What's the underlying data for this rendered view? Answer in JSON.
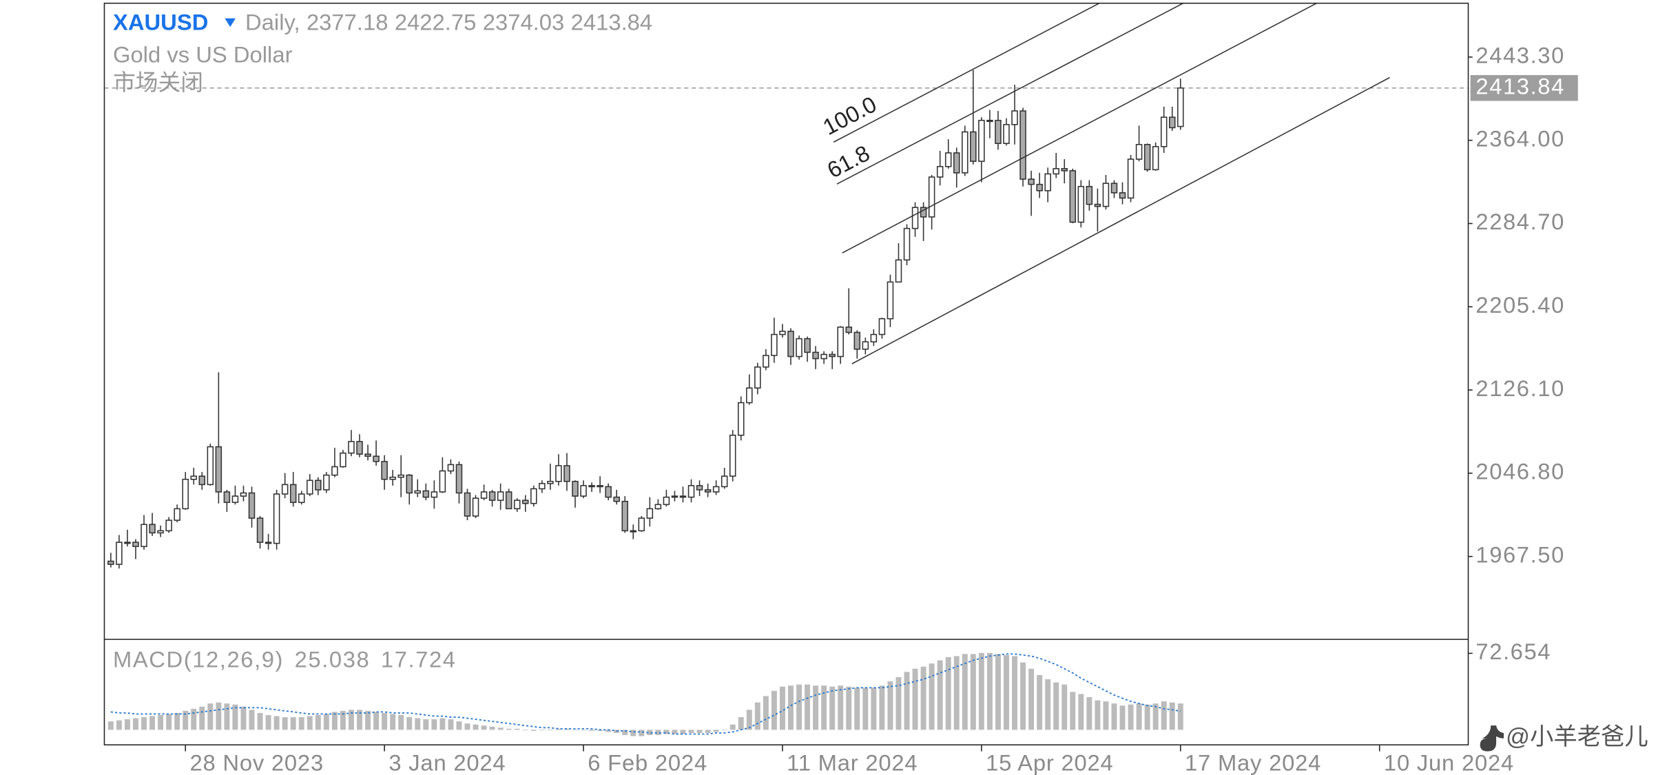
{
  "chart_data": {
    "type": "candlestick",
    "symbol": "XAUUSD",
    "timeframe": "Daily,",
    "description": "Gold vs US Dollar",
    "status": "市场关闭",
    "channel_labels": [
      "100.0",
      "61.8"
    ],
    "watermark": "@小羊老爸儿",
    "up_color": "#ffffff",
    "down_color": "#aaaaaa",
    "outline_color": "#333333",
    "xlim": [
      -0.78,
      163.7
    ],
    "ylim": [
      1888.5,
      2494.6
    ],
    "yticks": [
      {
        "value": 2443.3,
        "label": "2443.30"
      },
      {
        "value": 2364.0,
        "label": "2364.00"
      },
      {
        "value": 2284.7,
        "label": "2284.70"
      },
      {
        "value": 2205.4,
        "label": "2205.40"
      },
      {
        "value": 2126.1,
        "label": "2126.10"
      },
      {
        "value": 2046.8,
        "label": "2046.80"
      },
      {
        "value": 1967.5,
        "label": "1967.50"
      }
    ],
    "xticks": [
      {
        "value": 9,
        "label": "28 Nov 2023"
      },
      {
        "value": 33,
        "label": "3 Jan 2024"
      },
      {
        "value": 57,
        "label": "6 Feb 2024"
      },
      {
        "value": 81,
        "label": "11 Mar 2024"
      },
      {
        "value": 105,
        "label": "15 Apr 2024"
      },
      {
        "value": 129,
        "label": "17 May 2024"
      },
      {
        "value": 153,
        "label": "10 Jun 2024"
      }
    ],
    "ohlc": [
      [
        1963,
        1971,
        1957,
        1960
      ],
      [
        1960,
        1988,
        1956,
        1981
      ],
      [
        1981,
        1993,
        1977,
        1981
      ],
      [
        1981,
        1984,
        1965,
        1977
      ],
      [
        1977,
        2007,
        1974,
        1998
      ],
      [
        1998,
        2009,
        1987,
        1990
      ],
      [
        1990,
        1997,
        1986,
        1992
      ],
      [
        1992,
        2005,
        1990,
        2002
      ],
      [
        2002,
        2017,
        2000,
        2013
      ],
      [
        2013,
        2048,
        2012,
        2041
      ],
      [
        2041,
        2052,
        2036,
        2044
      ],
      [
        2044,
        2048,
        2031,
        2036
      ],
      [
        2036,
        2075,
        2035,
        2072
      ],
      [
        2072,
        2143,
        2018,
        2029
      ],
      [
        2029,
        2031,
        2010,
        2019
      ],
      [
        2019,
        2035,
        2017,
        2025
      ],
      [
        2025,
        2035,
        2020,
        2028
      ],
      [
        2028,
        2034,
        1995,
        2004
      ],
      [
        2004,
        2006,
        1975,
        1981
      ],
      [
        1981,
        1989,
        1974,
        1980
      ],
      [
        1980,
        2031,
        1974,
        2027
      ],
      [
        2027,
        2047,
        2023,
        2036
      ],
      [
        2036,
        2048,
        2015,
        2019
      ],
      [
        2019,
        2030,
        2017,
        2027
      ],
      [
        2027,
        2046,
        2025,
        2040
      ],
      [
        2040,
        2043,
        2026,
        2031
      ],
      [
        2031,
        2048,
        2028,
        2045
      ],
      [
        2045,
        2071,
        2043,
        2053
      ],
      [
        2053,
        2069,
        2052,
        2066
      ],
      [
        2066,
        2088,
        2063,
        2077
      ],
      [
        2077,
        2084,
        2062,
        2065
      ],
      [
        2065,
        2074,
        2059,
        2063
      ],
      [
        2063,
        2078,
        2054,
        2058
      ],
      [
        2058,
        2064,
        2031,
        2041
      ],
      [
        2041,
        2050,
        2035,
        2043
      ],
      [
        2043,
        2064,
        2024,
        2045
      ],
      [
        2045,
        2046,
        2017,
        2028
      ],
      [
        2028,
        2041,
        2024,
        2030
      ],
      [
        2030,
        2037,
        2021,
        2024
      ],
      [
        2024,
        2040,
        2013,
        2029
      ],
      [
        2029,
        2062,
        2028,
        2049
      ],
      [
        2049,
        2060,
        2046,
        2055
      ],
      [
        2055,
        2058,
        2018,
        2028
      ],
      [
        2028,
        2032,
        2002,
        2006
      ],
      [
        2006,
        2026,
        2004,
        2023
      ],
      [
        2023,
        2036,
        2021,
        2029
      ],
      [
        2029,
        2031,
        2015,
        2021
      ],
      [
        2021,
        2037,
        2012,
        2029
      ],
      [
        2029,
        2032,
        2013,
        2013
      ],
      [
        2013,
        2023,
        2010,
        2021
      ],
      [
        2021,
        2026,
        2010,
        2018
      ],
      [
        2018,
        2035,
        2015,
        2032
      ],
      [
        2032,
        2040,
        2028,
        2037
      ],
      [
        2037,
        2056,
        2031,
        2039
      ],
      [
        2039,
        2065,
        2035,
        2054
      ],
      [
        2054,
        2066,
        2030,
        2039
      ],
      [
        2039,
        2040,
        2014,
        2025
      ],
      [
        2025,
        2040,
        2023,
        2035
      ],
      [
        2035,
        2038,
        2029,
        2035
      ],
      [
        2035,
        2044,
        2028,
        2034
      ],
      [
        2034,
        2037,
        2021,
        2024
      ],
      [
        2024,
        2031,
        2017,
        2020
      ],
      [
        2020,
        2025,
        1990,
        1992
      ],
      [
        1992,
        1998,
        1984,
        1992
      ],
      [
        1992,
        2006,
        1991,
        2004
      ],
      [
        2004,
        2024,
        1996,
        2013
      ],
      [
        2013,
        2022,
        2012,
        2017
      ],
      [
        2017,
        2031,
        2015,
        2024
      ],
      [
        2024,
        2030,
        2020,
        2025
      ],
      [
        2025,
        2034,
        2019,
        2024
      ],
      [
        2024,
        2041,
        2019,
        2035
      ],
      [
        2035,
        2040,
        2025,
        2031
      ],
      [
        2031,
        2037,
        2024,
        2029
      ],
      [
        2029,
        2040,
        2026,
        2034
      ],
      [
        2034,
        2052,
        2032,
        2044
      ],
      [
        2044,
        2088,
        2039,
        2083
      ],
      [
        2083,
        2120,
        2078,
        2114
      ],
      [
        2114,
        2141,
        2112,
        2128
      ],
      [
        2128,
        2152,
        2122,
        2148
      ],
      [
        2148,
        2165,
        2145,
        2159
      ],
      [
        2159,
        2195,
        2152,
        2179
      ],
      [
        2179,
        2189,
        2176,
        2182
      ],
      [
        2182,
        2185,
        2150,
        2158
      ],
      [
        2158,
        2178,
        2155,
        2175
      ],
      [
        2175,
        2177,
        2153,
        2162
      ],
      [
        2162,
        2168,
        2146,
        2156
      ],
      [
        2156,
        2163,
        2151,
        2160
      ],
      [
        2160,
        2163,
        2146,
        2158
      ],
      [
        2158,
        2187,
        2151,
        2186
      ],
      [
        2186,
        2223,
        2179,
        2181
      ],
      [
        2181,
        2183,
        2156,
        2165
      ],
      [
        2165,
        2176,
        2160,
        2172
      ],
      [
        2172,
        2184,
        2168,
        2179
      ],
      [
        2179,
        2195,
        2175,
        2194
      ],
      [
        2194,
        2236,
        2186,
        2229
      ],
      [
        2229,
        2266,
        2229,
        2250
      ],
      [
        2250,
        2284,
        2245,
        2280
      ],
      [
        2280,
        2305,
        2272,
        2300
      ],
      [
        2300,
        2305,
        2268,
        2291
      ],
      [
        2291,
        2331,
        2279,
        2329
      ],
      [
        2329,
        2354,
        2321,
        2339
      ],
      [
        2339,
        2365,
        2337,
        2352
      ],
      [
        2352,
        2357,
        2319,
        2333
      ],
      [
        2333,
        2378,
        2330,
        2372
      ],
      [
        2372,
        2431,
        2341,
        2344
      ],
      [
        2344,
        2386,
        2324,
        2383
      ],
      [
        2383,
        2393,
        2366,
        2383
      ],
      [
        2383,
        2392,
        2355,
        2361
      ],
      [
        2361,
        2385,
        2359,
        2379
      ],
      [
        2379,
        2417,
        2360,
        2392
      ],
      [
        2392,
        2395,
        2320,
        2327
      ],
      [
        2327,
        2335,
        2292,
        2322
      ],
      [
        2322,
        2333,
        2309,
        2316
      ],
      [
        2316,
        2338,
        2305,
        2332
      ],
      [
        2332,
        2352,
        2328,
        2337
      ],
      [
        2337,
        2346,
        2323,
        2335
      ],
      [
        2335,
        2337,
        2285,
        2286
      ],
      [
        2286,
        2326,
        2281,
        2320
      ],
      [
        2320,
        2326,
        2297,
        2303
      ],
      [
        2303,
        2318,
        2277,
        2301
      ],
      [
        2301,
        2331,
        2298,
        2323
      ],
      [
        2323,
        2326,
        2309,
        2314
      ],
      [
        2314,
        2324,
        2303,
        2309
      ],
      [
        2309,
        2350,
        2305,
        2346
      ],
      [
        2346,
        2378,
        2344,
        2360
      ],
      [
        2360,
        2361,
        2334,
        2336
      ],
      [
        2336,
        2362,
        2335,
        2358
      ],
      [
        2358,
        2396,
        2352,
        2386
      ],
      [
        2386,
        2396,
        2373,
        2376
      ],
      [
        2377.18,
        2422.75,
        2374.03,
        2413.84
      ]
    ],
    "macd": {
      "type": "bar",
      "title": "MACD(12,26,9)",
      "color": "#bbbbbb",
      "signal_color": "#2e7bcf",
      "ylim": [
        -14.3,
        85.9
      ],
      "yticks": [
        72.654
      ],
      "values": [
        8,
        9,
        10,
        11,
        12,
        13,
        14,
        15,
        16,
        18,
        20,
        22,
        25,
        26,
        25,
        24,
        22,
        19,
        16,
        14,
        13,
        12,
        12,
        12,
        13,
        14,
        15,
        17,
        18,
        19,
        19,
        18,
        17,
        16,
        15,
        14,
        12,
        11,
        10,
        10,
        11,
        10,
        8,
        6,
        5,
        4,
        3,
        2,
        1,
        1,
        0,
        -1,
        0,
        0,
        1,
        1,
        0,
        0,
        -1,
        -1,
        -2,
        -3,
        -5,
        -6,
        -6,
        -5,
        -5,
        -4,
        -4,
        -4,
        -3,
        -3,
        -3,
        -2,
        0,
        5,
        12,
        19,
        26,
        32,
        37,
        41,
        42,
        43,
        43,
        42,
        42,
        41,
        42,
        41,
        40,
        40,
        40,
        42,
        46,
        50,
        55,
        58,
        60,
        63,
        66,
        69,
        70,
        72,
        72,
        73,
        73,
        72,
        71,
        70,
        64,
        58,
        52,
        48,
        45,
        43,
        36,
        34,
        31,
        28,
        27,
        25,
        23,
        24,
        25,
        24,
        25,
        27,
        26,
        25.038
      ],
      "signal": [
        17,
        16,
        16,
        15,
        15,
        15,
        15,
        15,
        15,
        15,
        16,
        17,
        18,
        19,
        20,
        21,
        21,
        21,
        21,
        20,
        19,
        18,
        17,
        16,
        15,
        15,
        15,
        15,
        15,
        16,
        16,
        16,
        17,
        17,
        16,
        16,
        16,
        15,
        14,
        13,
        13,
        12,
        12,
        11,
        10,
        9,
        8,
        7,
        6,
        5,
        4,
        3,
        2,
        2,
        1,
        1,
        1,
        1,
        1,
        0,
        0,
        -1,
        -1,
        -2,
        -2,
        -3,
        -3,
        -3,
        -4,
        -4,
        -4,
        -4,
        -4,
        -3,
        -3,
        -2,
        0,
        2,
        6,
        10,
        14,
        18,
        23,
        27,
        30,
        33,
        35,
        37,
        38,
        39,
        40,
        40,
        40,
        40,
        41,
        42,
        44,
        46,
        48,
        51,
        54,
        57,
        60,
        63,
        66,
        68,
        70,
        71,
        72,
        72,
        71,
        70,
        68,
        65,
        62,
        58,
        54,
        49,
        45,
        41,
        37,
        33,
        30,
        27,
        25,
        23,
        22,
        20,
        19,
        17.724
      ]
    }
  }
}
